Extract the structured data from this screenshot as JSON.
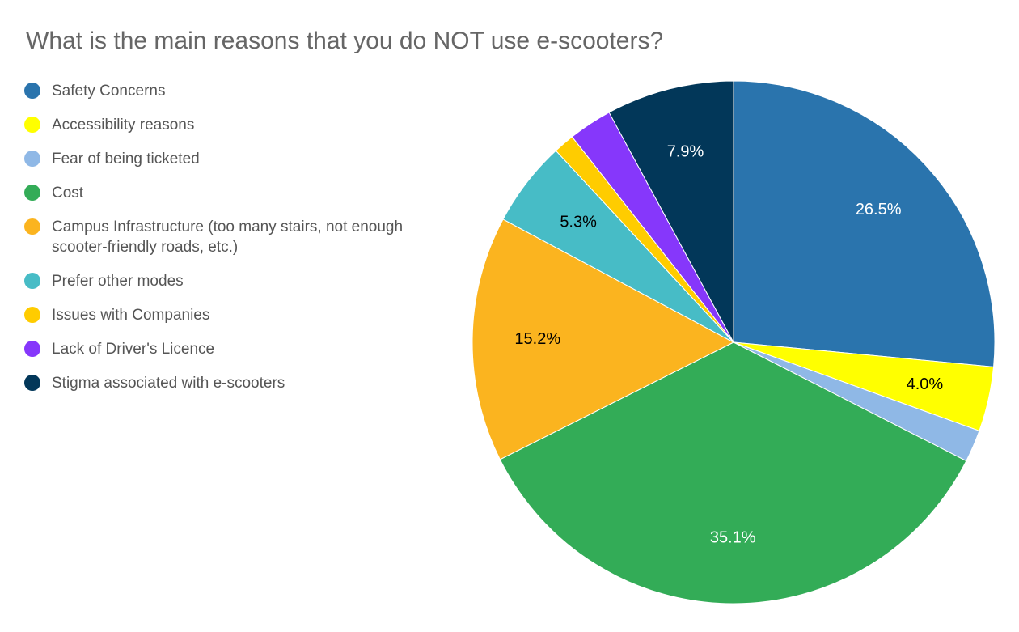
{
  "chart_data": {
    "type": "pie",
    "title": "What is the main reasons that you do NOT use e-scooters?",
    "categories": [
      "Safety Concerns",
      "Accessibility reasons",
      "Fear of being ticketed",
      "Cost",
      "Campus Infrastructure (too many stairs, not enough scooter-friendly roads, etc.)",
      "Prefer other modes",
      "Issues with Companies",
      "Lack of Driver's Licence",
      "Stigma associated with e-scooters"
    ],
    "values": [
      26.5,
      4.0,
      2.0,
      35.1,
      15.2,
      5.3,
      1.3,
      2.7,
      7.9
    ],
    "value_labels": [
      "26.5%",
      "4.0%",
      null,
      "35.1%",
      "15.2%",
      "5.3%",
      null,
      null,
      "7.9%"
    ],
    "colors": [
      "#2a74ad",
      "#ffff00",
      "#8fb8e6",
      "#33ac57",
      "#fbb41f",
      "#47bcc6",
      "#ffcc00",
      "#8637fb",
      "#023759"
    ],
    "legend": "left"
  }
}
